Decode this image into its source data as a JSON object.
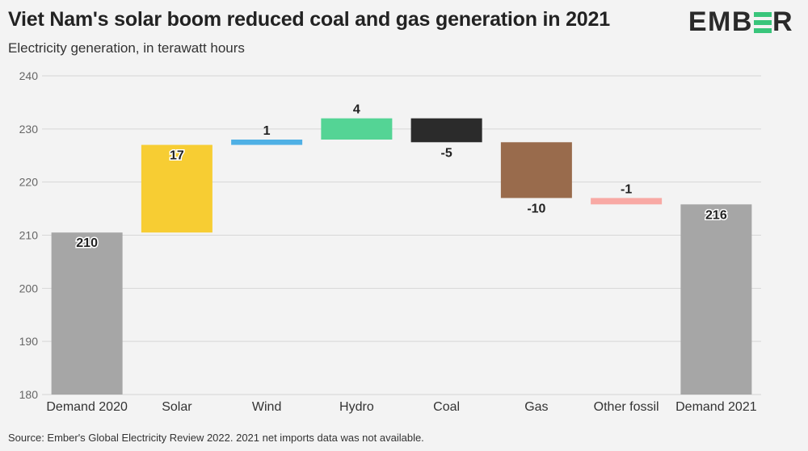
{
  "header": {
    "title": "Viet Nam's solar boom reduced coal and gas generation in 2021",
    "subtitle": "Electricity generation, in terawatt hours",
    "logo_prefix": "EMB",
    "logo_suffix": "R"
  },
  "footer": {
    "source": "Source: Ember's Global Electricity Review 2022. 2021 net imports data was not available."
  },
  "colors": {
    "total": "#a6a6a6",
    "solar": "#f7cd33",
    "wind": "#4fb0e5",
    "hydro": "#54d495",
    "coal": "#2b2b2b",
    "gas": "#996b4c",
    "other_fossil": "#f8a9a4",
    "grid": "#d6d6d6",
    "logo_green": "#39c57b"
  },
  "chart_data": {
    "type": "bar",
    "subtype": "waterfall",
    "ylim": [
      180,
      240
    ],
    "yticks": [
      180,
      190,
      200,
      210,
      220,
      230,
      240
    ],
    "grid": true,
    "bars": [
      {
        "category": "Demand 2020",
        "start": 180,
        "end": 210.5,
        "label": "210",
        "color_key": "total",
        "label_pos": "inside-top"
      },
      {
        "category": "Solar",
        "start": 210.5,
        "end": 227,
        "label": "17",
        "color_key": "solar",
        "label_pos": "inside-top"
      },
      {
        "category": "Wind",
        "start": 227,
        "end": 228,
        "label": "1",
        "color_key": "wind",
        "label_pos": "above"
      },
      {
        "category": "Hydro",
        "start": 228,
        "end": 232,
        "label": "4",
        "color_key": "hydro",
        "label_pos": "above"
      },
      {
        "category": "Coal",
        "start": 232,
        "end": 227.5,
        "label": "-5",
        "color_key": "coal",
        "label_pos": "below"
      },
      {
        "category": "Gas",
        "start": 227.5,
        "end": 217,
        "label": "-10",
        "color_key": "gas",
        "label_pos": "below"
      },
      {
        "category": "Other fossil",
        "start": 217,
        "end": 215.8,
        "label": "-1",
        "color_key": "other_fossil",
        "label_pos": "above"
      },
      {
        "category": "Demand 2021",
        "start": 180,
        "end": 215.8,
        "label": "216",
        "color_key": "total",
        "label_pos": "inside-top"
      }
    ]
  }
}
